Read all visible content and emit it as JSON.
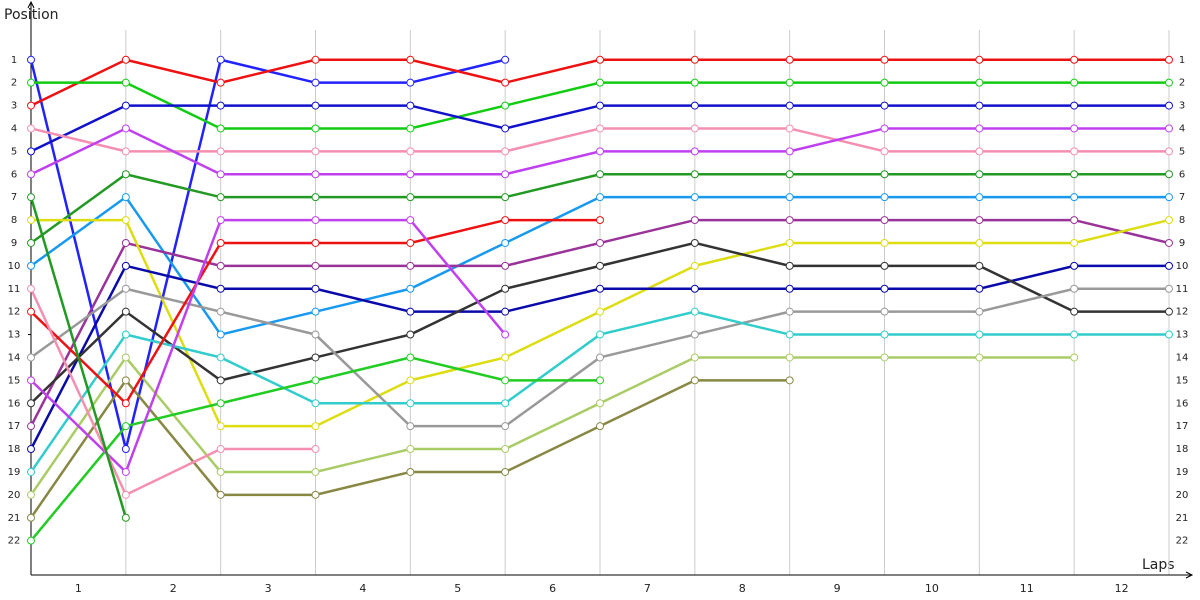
{
  "chart_data": {
    "type": "line",
    "y_label": "Position",
    "x_label": "Laps",
    "x": [
      0,
      1,
      2,
      3,
      4,
      5,
      6,
      7,
      8,
      9,
      10,
      11,
      12
    ],
    "xlim": [
      0,
      12
    ],
    "xticks": [
      {
        "value": 0.5,
        "label": "1"
      },
      {
        "value": 1.5,
        "label": "2"
      },
      {
        "value": 2.5,
        "label": "3"
      },
      {
        "value": 3.5,
        "label": "4"
      },
      {
        "value": 4.5,
        "label": "5"
      },
      {
        "value": 5.5,
        "label": "6"
      },
      {
        "value": 6.5,
        "label": "7"
      },
      {
        "value": 7.5,
        "label": "8"
      },
      {
        "value": 8.5,
        "label": "9"
      },
      {
        "value": 9.5,
        "label": "10"
      },
      {
        "value": 10.5,
        "label": "11"
      },
      {
        "value": 11.5,
        "label": "12"
      }
    ],
    "ylim": [
      23.5,
      -0.3
    ],
    "yticks": [
      1,
      2,
      3,
      4,
      5,
      6,
      7,
      8,
      9,
      10,
      11,
      12,
      13,
      14,
      15,
      16,
      17,
      18,
      19,
      20,
      21,
      22
    ],
    "grid": true,
    "series": [
      {
        "color": "#2222ff",
        "values": [
          1,
          18,
          1,
          2,
          2,
          1,
          null,
          null,
          null,
          null,
          null,
          null,
          null
        ]
      },
      {
        "color": "#ee1111",
        "values": [
          3,
          1,
          2,
          1,
          1,
          2,
          1,
          1,
          1,
          1,
          1,
          1,
          1
        ]
      },
      {
        "color": "#11cc11",
        "values": [
          2,
          2,
          4,
          4,
          4,
          3,
          2,
          2,
          2,
          2,
          2,
          2,
          2
        ]
      },
      {
        "color": "#1111cc",
        "values": [
          5,
          3,
          3,
          3,
          3,
          4,
          3,
          3,
          3,
          3,
          3,
          3,
          3
        ]
      },
      {
        "color": "#f58fb0",
        "values": [
          4,
          5,
          5,
          5,
          5,
          5,
          4,
          4,
          4,
          5,
          5,
          5,
          5
        ]
      },
      {
        "color": "#c040f0",
        "values": [
          6,
          4,
          6,
          6,
          6,
          6,
          5,
          5,
          5,
          4,
          4,
          4,
          4
        ]
      },
      {
        "color": "#229922",
        "values": [
          9,
          6,
          7,
          7,
          7,
          7,
          6,
          6,
          6,
          6,
          6,
          6,
          6
        ]
      },
      {
        "color": "#1899f0",
        "values": [
          10,
          7,
          13,
          12,
          11,
          9,
          7,
          7,
          7,
          7,
          7,
          7,
          7
        ]
      },
      {
        "color": "#993399",
        "values": [
          17,
          9,
          10,
          10,
          10,
          10,
          9,
          8,
          8,
          8,
          8,
          8,
          9
        ]
      },
      {
        "color": "#dddd11",
        "values": [
          8,
          8,
          17,
          17,
          15,
          14,
          12,
          10,
          9,
          9,
          9,
          9,
          8
        ]
      },
      {
        "color": "#0a0aaa",
        "values": [
          18,
          10,
          11,
          11,
          12,
          12,
          11,
          11,
          11,
          11,
          11,
          10,
          10
        ]
      },
      {
        "color": "#333333",
        "values": [
          16,
          12,
          15,
          14,
          13,
          11,
          10,
          9,
          10,
          10,
          10,
          12,
          12
        ]
      },
      {
        "color": "#999999",
        "values": [
          14,
          11,
          12,
          13,
          17,
          17,
          14,
          13,
          12,
          12,
          12,
          11,
          11
        ]
      },
      {
        "color": "#33cccc",
        "values": [
          19,
          13,
          14,
          16,
          16,
          16,
          13,
          12,
          13,
          13,
          13,
          13,
          13
        ]
      },
      {
        "color": "#aacc66",
        "values": [
          20,
          14,
          19,
          19,
          18,
          18,
          16,
          14,
          14,
          14,
          14,
          14,
          null
        ]
      },
      {
        "color": "#888844",
        "values": [
          21,
          15,
          20,
          20,
          19,
          19,
          17,
          15,
          15,
          null,
          null,
          null,
          null
        ]
      },
      {
        "color": "#22cc22",
        "values": [
          22,
          17,
          16,
          15,
          14,
          15,
          15,
          null,
          null,
          null,
          null,
          null,
          null
        ]
      },
      {
        "color": "#ee1111",
        "values": [
          12,
          16,
          9,
          9,
          9,
          8,
          8,
          null,
          null,
          null,
          null,
          null,
          null
        ]
      },
      {
        "color": "#c040f0",
        "values": [
          15,
          19,
          8,
          8,
          8,
          13,
          null,
          null,
          null,
          null,
          null,
          null,
          null
        ]
      },
      {
        "color": "#f58fb0",
        "values": [
          11,
          20,
          18,
          18,
          null,
          null,
          null,
          null,
          null,
          null,
          null,
          null,
          null
        ]
      },
      {
        "color": "#229922",
        "values": [
          7,
          21,
          null,
          null,
          null,
          null,
          null,
          null,
          null,
          null,
          null,
          null,
          null
        ]
      }
    ]
  }
}
